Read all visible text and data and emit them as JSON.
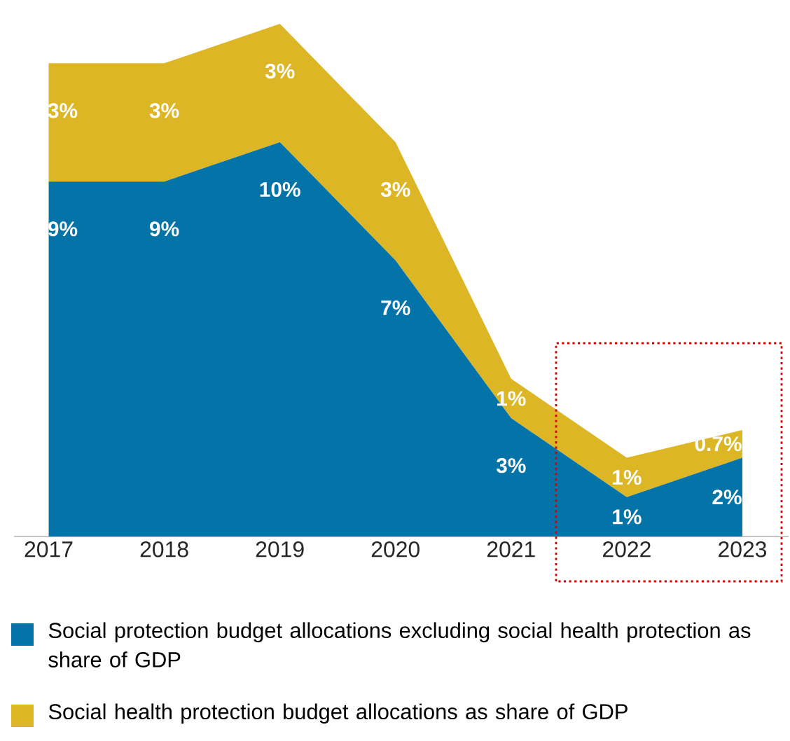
{
  "chart_data": {
    "type": "area",
    "stacked": true,
    "x": [
      2017,
      2018,
      2019,
      2020,
      2021,
      2022,
      2023
    ],
    "xlim": [
      2016.7,
      2023.4
    ],
    "xticks": [
      2017,
      2018,
      2019,
      2020,
      2021,
      2022,
      2023
    ],
    "series": [
      {
        "name": "Social protection budget allocations excluding social health protection as share of GDP",
        "color": "#0473a8",
        "values": [
          9,
          9,
          10,
          7,
          3,
          1,
          2
        ],
        "value_labels": [
          "9%",
          "9%",
          "10%",
          "7%",
          "3%",
          "1%",
          "2%"
        ]
      },
      {
        "name": "Social health protection budget allocations as share of GDP",
        "color": "#dcb624",
        "values": [
          3,
          3,
          3,
          3,
          1,
          1,
          0.7
        ],
        "value_labels": [
          "3%",
          "3%",
          "3%",
          "3%",
          "1%",
          "1%",
          "0.7%"
        ]
      }
    ],
    "legend": "bottom",
    "grid": false
  }
}
